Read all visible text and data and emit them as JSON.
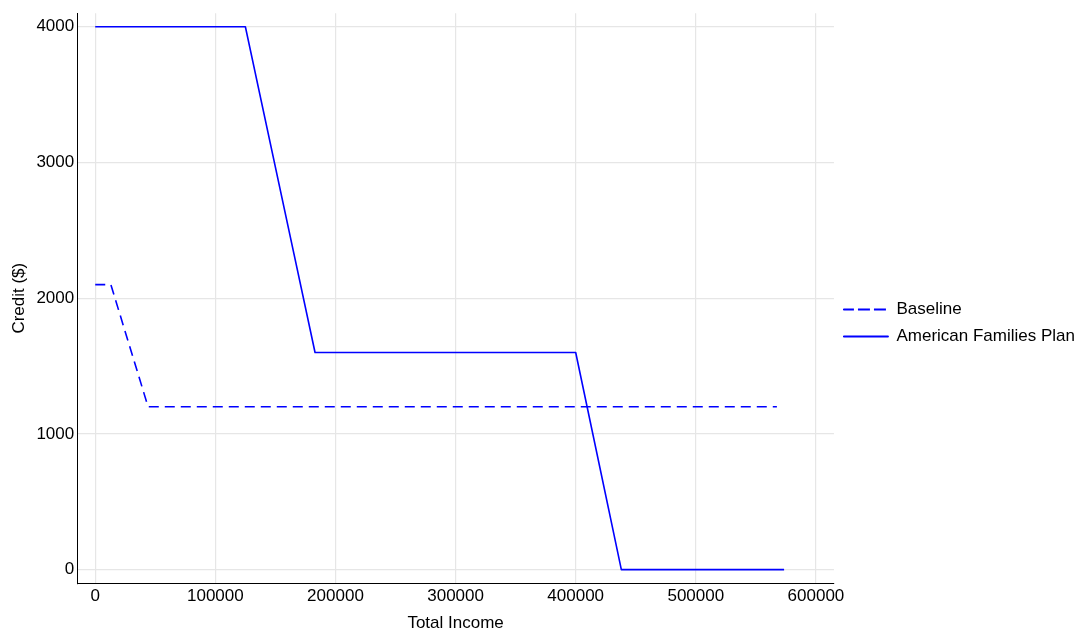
{
  "chart_data": {
    "type": "line",
    "xlabel": "Total Income",
    "ylabel": "Credit ($)",
    "series": [
      {
        "name": "Baseline",
        "color": "#0000ff",
        "line_style": "dashed",
        "x": [
          0,
          13000,
          44000,
          567500
        ],
        "values": [
          2100,
          2100,
          1200,
          1200
        ]
      },
      {
        "name": "American Families Plan",
        "color": "#0000ff",
        "line_style": "solid",
        "x": [
          0,
          125000,
          183000,
          400000,
          438000,
          573500
        ],
        "values": [
          4000,
          4000,
          1600,
          1600,
          0,
          0
        ]
      }
    ],
    "xlim": [
      -15000,
      615000
    ],
    "xticks": [
      0,
      100000,
      200000,
      300000,
      400000,
      500000,
      600000
    ],
    "ylim": [
      -100,
      4100
    ],
    "yticks": [
      0,
      1000,
      2000,
      3000,
      4000
    ],
    "grid": true,
    "legend": "right",
    "marker": "none"
  }
}
